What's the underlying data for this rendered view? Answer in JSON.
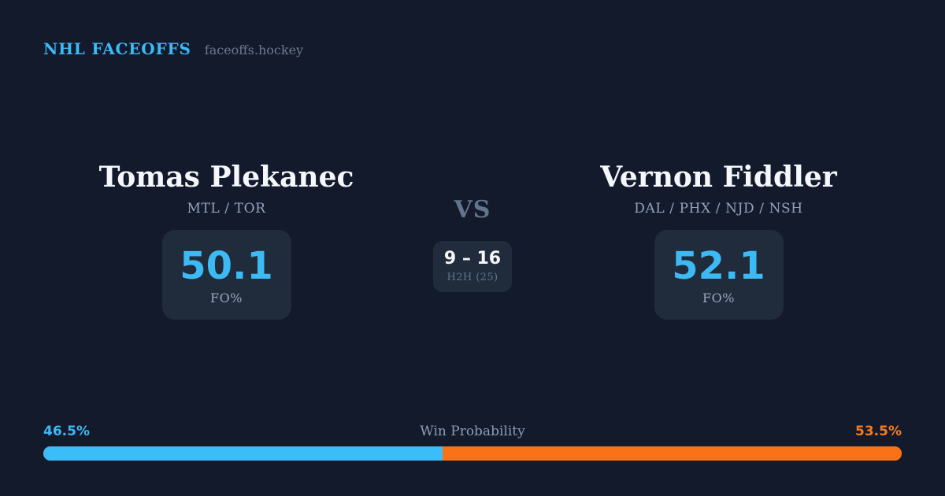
{
  "page": {
    "bg_color": "#121a2c",
    "card_color": "#202b3c",
    "accent_blue": "#3db9f4",
    "accent_orange": "#f97316"
  },
  "header": {
    "brand": "NHL FACEOFFS",
    "site": "faceoffs.hockey"
  },
  "matchup": {
    "vs_label": "VS",
    "h2h": {
      "score": "9 – 16",
      "label": "H2H (25)"
    },
    "players": {
      "left": {
        "name": "Tomas Plekanec",
        "teams": "MTL / TOR",
        "stat_value": "50.1",
        "stat_label": "FO%"
      },
      "right": {
        "name": "Vernon Fiddler",
        "teams": "DAL / PHX / NJD / NSH",
        "stat_value": "52.1",
        "stat_label": "FO%"
      }
    }
  },
  "win_probability": {
    "title": "Win Probability",
    "left_pct_label": "46.5%",
    "right_pct_label": "53.5%",
    "left_value": 46.5,
    "right_value": 53.5
  }
}
